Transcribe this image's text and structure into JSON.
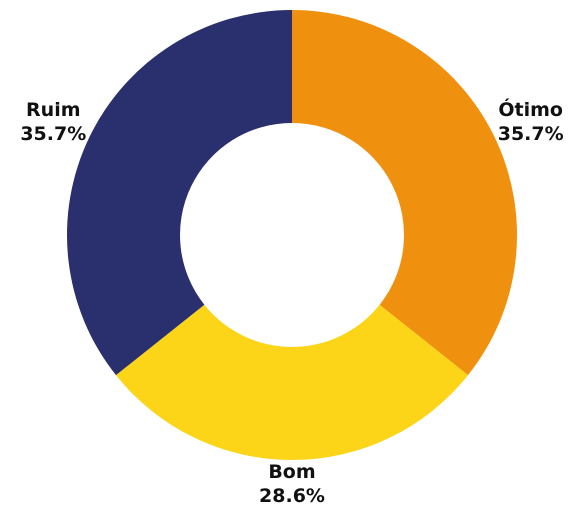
{
  "chart_data": {
    "type": "pie",
    "donut": true,
    "title": "",
    "slices": [
      {
        "label": "Ótimo",
        "value": 35.7,
        "value_label": "35.7%",
        "color": "#F0900F"
      },
      {
        "label": "Bom",
        "value": 28.6,
        "value_label": "28.6%",
        "color": "#FCD418"
      },
      {
        "label": "Ruim",
        "value": 35.7,
        "value_label": "35.7%",
        "color": "#2A2F6E"
      }
    ],
    "start_angle": "top",
    "direction": "clockwise",
    "legend": "none"
  }
}
